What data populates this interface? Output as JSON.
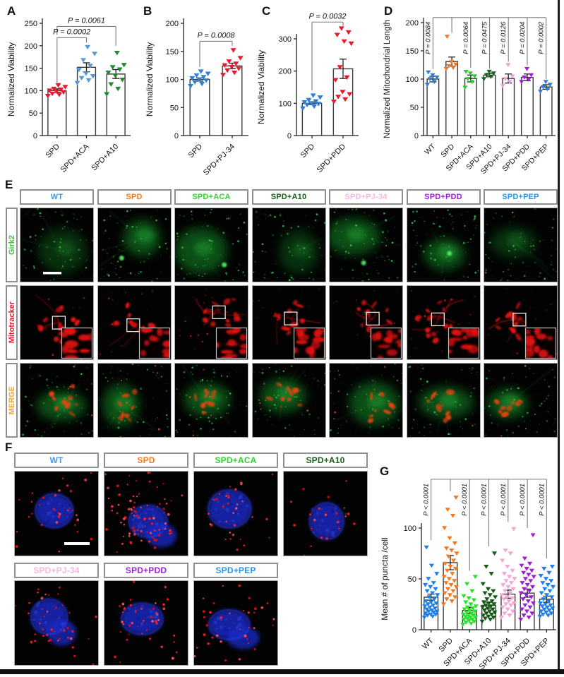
{
  "panels": {
    "a": "A",
    "b": "B",
    "c": "C",
    "d": "D",
    "e": "E",
    "f": "F",
    "g": "G"
  },
  "chart_data": [
    {
      "id": "A",
      "type": "scatter",
      "title": "",
      "ylabel": "Normalized Viability",
      "yticks": [
        0,
        50,
        100,
        150,
        200,
        250
      ],
      "ylim": [
        0,
        265
      ],
      "categories": [
        "SPD",
        "SPD+ACA",
        "SPD+A10"
      ],
      "colors": [
        "#e8192c",
        "#5b9bd5",
        "#1f8a2f"
      ],
      "means": [
        100,
        152,
        137
      ],
      "sems": [
        4,
        10,
        10
      ],
      "series": [
        {
          "name": "SPD",
          "values": [
            88,
            91,
            93,
            96,
            98,
            100,
            102,
            104,
            108,
            112
          ]
        },
        {
          "name": "SPD+ACA",
          "values": [
            117,
            123,
            128,
            132,
            138,
            146,
            155,
            168,
            182,
            197
          ]
        },
        {
          "name": "SPD+A10",
          "values": [
            92,
            104,
            114,
            124,
            133,
            140,
            147,
            152,
            157,
            184
          ]
        }
      ],
      "comparisons": [
        {
          "g1": 0,
          "g2": 1,
          "y": 218,
          "d1": 118,
          "d2": 207,
          "label": "P = 0.0002"
        },
        {
          "g1": 0,
          "g2": 2,
          "y": 243,
          "d1": 224,
          "d2": 200,
          "label": "P = 0.0061"
        }
      ]
    },
    {
      "id": "B",
      "type": "scatter",
      "title": "",
      "ylabel": "Normalized Viability",
      "yticks": [
        0,
        50,
        100,
        150,
        200
      ],
      "ylim": [
        0,
        210
      ],
      "categories": [
        "SPD",
        "SPD+PJ-34"
      ],
      "colors": [
        "#2f7fd6",
        "#e8192c"
      ],
      "means": [
        100,
        124
      ],
      "sems": [
        3,
        5
      ],
      "series": [
        {
          "name": "SPD",
          "values": [
            88,
            92,
            95,
            98,
            100,
            102,
            104,
            107,
            110,
            114
          ]
        },
        {
          "name": "SPD+PJ-34",
          "values": [
            108,
            112,
            116,
            119,
            122,
            125,
            128,
            132,
            138,
            152
          ]
        }
      ],
      "comparisons": [
        {
          "g1": 0,
          "g2": 1,
          "y": 168,
          "d1": 122,
          "d2": 160,
          "label": "P = 0.0008"
        }
      ]
    },
    {
      "id": "C",
      "type": "scatter",
      "title": "",
      "ylabel": "Normalized Viability",
      "yticks": [
        0,
        100,
        200,
        300
      ],
      "ylim": [
        0,
        360
      ],
      "categories": [
        "SPD",
        "SPD+PDD"
      ],
      "colors": [
        "#2f7fd6",
        "#e8192c"
      ],
      "means": [
        100,
        207
      ],
      "sems": [
        4,
        30
      ],
      "series": [
        {
          "name": "SPD",
          "values": [
            84,
            90,
            95,
            98,
            100,
            103,
            106,
            110,
            118,
            124
          ]
        },
        {
          "name": "SPD+PDD",
          "values": [
            105,
            112,
            120,
            128,
            135,
            172,
            180,
            212,
            285,
            292,
            312,
            320,
            332
          ]
        }
      ],
      "comparisons": [
        {
          "g1": 0,
          "g2": 1,
          "y": 352,
          "d1": 140,
          "d2": 340,
          "label": "P = 0.0032"
        }
      ]
    },
    {
      "id": "D",
      "type": "scatter",
      "title": "",
      "ylabel": "Normalized Mitochondrial Length",
      "yticks": [
        0,
        50,
        100,
        150,
        200
      ],
      "ylim": [
        0,
        215
      ],
      "categories": [
        "WT",
        "SPD",
        "SPD+ACA",
        "SPD+A10",
        "SPD+PJ-34",
        "SPD+PDD",
        "SPD+PEP"
      ],
      "colors": [
        "#2e7fd9",
        "#f47a20",
        "#2ecc2e",
        "#14601e",
        "#eda0dc",
        "#a21ad6",
        "#2e7fd9"
      ],
      "means": [
        100,
        131,
        101,
        107,
        101,
        103,
        86
      ],
      "sems": [
        5,
        8,
        6,
        3,
        8,
        6,
        4
      ],
      "series": [
        {
          "name": "WT",
          "values": [
            90,
            95,
            100,
            103,
            107,
            112
          ]
        },
        {
          "name": "SPD",
          "values": [
            118,
            120,
            123,
            126,
            130,
            175
          ]
        },
        {
          "name": "SPD+ACA",
          "values": [
            85,
            95,
            100,
            105,
            110,
            113
          ]
        },
        {
          "name": "SPD+A10",
          "values": [
            100,
            104,
            107,
            110,
            113
          ]
        },
        {
          "name": "SPD+PJ-34",
          "values": [
            88,
            95,
            100,
            105,
            125
          ]
        },
        {
          "name": "SPD+PDD",
          "values": [
            95,
            99,
            103,
            107,
            118
          ]
        },
        {
          "name": "SPD+PEP",
          "values": [
            78,
            82,
            86,
            90,
            95
          ]
        }
      ],
      "comb": {
        "base": 1,
        "top": 209,
        "base_drop": 182,
        "targets": [
          {
            "g": 0,
            "label": "P = 0.0084",
            "drop": 118
          },
          {
            "g": 2,
            "label": "P = 0.0064",
            "drop": 120
          },
          {
            "g": 3,
            "label": "P = 0.0475",
            "drop": 118
          },
          {
            "g": 4,
            "label": "P = 0.0126",
            "drop": 131
          },
          {
            "g": 5,
            "label": "P = 0.0204",
            "drop": 124
          },
          {
            "g": 6,
            "label": "P = 0.0002",
            "drop": 100
          }
        ]
      }
    },
    {
      "id": "G",
      "type": "scatter",
      "title": "",
      "ylabel": "Mean # of puncta /cell",
      "yticks": [
        0,
        50,
        100
      ],
      "ylim": [
        0,
        150
      ],
      "categories": [
        "WT",
        "SPD",
        "SPD+ACA",
        "SPD+A10",
        "SPD+PJ-34",
        "SPD+PDD",
        "SPD+PEP"
      ],
      "colors": [
        "#1e7fe8",
        "#f47a20",
        "#2ee02e",
        "#145a14",
        "#f4a6d7",
        "#a020d0",
        "#1e7fe8"
      ],
      "means": [
        32,
        66,
        19,
        24,
        35,
        36,
        30
      ],
      "sems": [
        3,
        7,
        3,
        3,
        4,
        4,
        3
      ],
      "series": [
        {
          "name": "WT",
          "values": [
            12,
            13,
            14,
            15,
            15,
            16,
            17,
            18,
            18,
            19,
            20,
            21,
            22,
            23,
            24,
            25,
            26,
            27,
            28,
            30,
            32,
            34,
            36,
            38,
            40,
            42,
            44,
            46,
            50,
            55,
            63,
            81
          ]
        },
        {
          "name": "SPD",
          "values": [
            25,
            28,
            30,
            32,
            34,
            36,
            38,
            40,
            42,
            44,
            46,
            48,
            50,
            52,
            55,
            58,
            60,
            62,
            65,
            68,
            72,
            75,
            78,
            80,
            85,
            90,
            100,
            112,
            118,
            130
          ]
        },
        {
          "name": "SPD+ACA",
          "values": [
            5,
            6,
            7,
            8,
            9,
            10,
            10,
            11,
            12,
            12,
            13,
            14,
            14,
            15,
            16,
            17,
            18,
            19,
            20,
            21,
            22,
            23,
            25,
            27,
            29,
            31,
            33,
            38,
            45,
            52
          ]
        },
        {
          "name": "SPD+A10",
          "values": [
            8,
            10,
            11,
            12,
            13,
            14,
            15,
            16,
            17,
            18,
            19,
            20,
            21,
            22,
            23,
            24,
            25,
            26,
            27,
            28,
            30,
            32,
            34,
            36,
            38,
            40,
            45,
            55,
            62,
            75
          ]
        },
        {
          "name": "SPD+PJ-34",
          "values": [
            12,
            14,
            16,
            18,
            20,
            22,
            24,
            25,
            26,
            28,
            30,
            31,
            32,
            34,
            36,
            38,
            40,
            42,
            44,
            46,
            48,
            50,
            52,
            55,
            58,
            62,
            68,
            75,
            78,
            99
          ]
        },
        {
          "name": "SPD+PDD",
          "values": [
            10,
            12,
            14,
            16,
            18,
            20,
            22,
            24,
            26,
            28,
            30,
            32,
            34,
            36,
            38,
            40,
            42,
            44,
            46,
            48,
            50,
            52,
            54,
            56,
            58,
            60,
            63,
            65,
            70,
            93
          ]
        },
        {
          "name": "SPD+PEP",
          "values": [
            13,
            14,
            15,
            16,
            17,
            18,
            19,
            20,
            21,
            22,
            23,
            24,
            25,
            26,
            28,
            30,
            32,
            34,
            36,
            38,
            40,
            42,
            44,
            46,
            48,
            50,
            53,
            56,
            60,
            62
          ]
        }
      ],
      "comb": {
        "base": 1,
        "top": 148,
        "base_drop": 136,
        "targets": [
          {
            "g": 0,
            "label": "P < 0.0001",
            "drop": 88
          },
          {
            "g": 2,
            "label": "P < 0.0001",
            "drop": 58
          },
          {
            "g": 3,
            "label": "P < 0.0001",
            "drop": 82
          },
          {
            "g": 4,
            "label": "P < 0.0001",
            "drop": 106
          },
          {
            "g": 5,
            "label": "P < 0.0001",
            "drop": 100
          },
          {
            "g": 6,
            "label": "P < 0.0001",
            "drop": 70
          }
        ]
      }
    }
  ],
  "panel_e": {
    "columns": [
      {
        "label": "WT",
        "color": "#3b9af0"
      },
      {
        "label": "SPD",
        "color": "#f47a20"
      },
      {
        "label": "SPD+ACA",
        "color": "#2ed52e"
      },
      {
        "label": "SPD+A10",
        "color": "#1a5c1a"
      },
      {
        "label": "SPD+PJ-34",
        "color": "#f6b6de"
      },
      {
        "label": "SPD+PDD",
        "color": "#a020e0"
      },
      {
        "label": "SPD+PEP",
        "color": "#2196f3"
      }
    ],
    "rows": [
      {
        "label": "Girk2",
        "color": "#2ecc2e",
        "type": "girk2"
      },
      {
        "label": "Mitotracker",
        "color": "#e8192c",
        "type": "mito"
      },
      {
        "label": "MERGE",
        "color": "#f5a623",
        "type": "merge"
      }
    ]
  },
  "panel_f": {
    "row1": [
      {
        "label": "WT",
        "color": "#3b9af0",
        "dots": 30
      },
      {
        "label": "SPD",
        "color": "#f47a20",
        "dots": 85
      },
      {
        "label": "SPD+ACA",
        "color": "#2ed52e",
        "dots": 32
      },
      {
        "label": "SPD+A10",
        "color": "#1a5c1a",
        "dots": 22
      }
    ],
    "row2": [
      {
        "label": "SPD+PJ-34",
        "color": "#f6b6de",
        "dots": 40
      },
      {
        "label": "SPD+PDD",
        "color": "#a020e0",
        "dots": 45
      },
      {
        "label": "SPD+PEP",
        "color": "#2196f3",
        "dots": 35
      }
    ]
  }
}
